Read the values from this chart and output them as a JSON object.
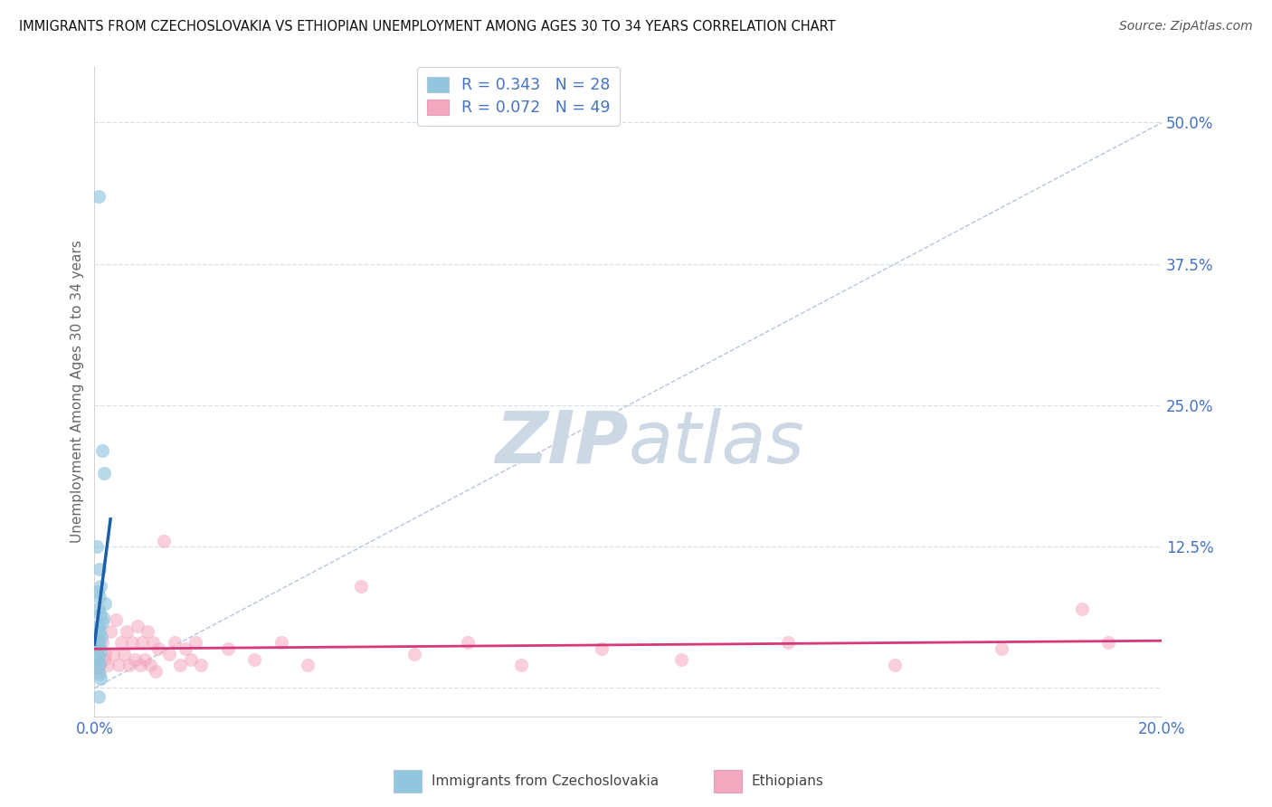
{
  "title": "IMMIGRANTS FROM CZECHOSLOVAKIA VS ETHIOPIAN UNEMPLOYMENT AMONG AGES 30 TO 34 YEARS CORRELATION CHART",
  "source": "Source: ZipAtlas.com",
  "ylabel": "Unemployment Among Ages 30 to 34 years",
  "xlim": [
    0.0,
    0.2
  ],
  "ylim": [
    -0.025,
    0.55
  ],
  "ytick_vals": [
    0.0,
    0.125,
    0.25,
    0.375,
    0.5
  ],
  "ytick_labels": [
    "",
    "12.5%",
    "25.0%",
    "37.5%",
    "50.0%"
  ],
  "xtick_vals": [
    0.0,
    0.05,
    0.1,
    0.15,
    0.2
  ],
  "xtick_labels": [
    "0.0%",
    "",
    "",
    "",
    "20.0%"
  ],
  "blue_R": 0.343,
  "blue_N": 28,
  "pink_R": 0.072,
  "pink_N": 49,
  "blue_x": [
    0.0008,
    0.0015,
    0.0018,
    0.0005,
    0.001,
    0.0012,
    0.0006,
    0.0009,
    0.002,
    0.0007,
    0.0011,
    0.0016,
    0.0014,
    0.0008,
    0.001,
    0.0005,
    0.0013,
    0.0007,
    0.0009,
    0.0006,
    0.0011,
    0.0008,
    0.0004,
    0.001,
    0.0006,
    0.0009,
    0.0012,
    0.0007
  ],
  "blue_y": [
    0.435,
    0.21,
    0.19,
    0.125,
    0.105,
    0.09,
    0.085,
    0.08,
    0.075,
    0.07,
    0.065,
    0.062,
    0.058,
    0.055,
    0.05,
    0.048,
    0.045,
    0.042,
    0.038,
    0.035,
    0.032,
    0.028,
    0.025,
    0.022,
    0.018,
    0.012,
    0.008,
    -0.008
  ],
  "pink_x": [
    0.0005,
    0.001,
    0.0008,
    0.0015,
    0.002,
    0.0018,
    0.003,
    0.0025,
    0.004,
    0.0035,
    0.005,
    0.0045,
    0.006,
    0.0055,
    0.007,
    0.0065,
    0.008,
    0.0075,
    0.009,
    0.0085,
    0.01,
    0.0095,
    0.011,
    0.0105,
    0.012,
    0.0115,
    0.013,
    0.014,
    0.015,
    0.016,
    0.017,
    0.018,
    0.019,
    0.02,
    0.025,
    0.03,
    0.035,
    0.04,
    0.05,
    0.06,
    0.07,
    0.08,
    0.095,
    0.11,
    0.13,
    0.15,
    0.17,
    0.185,
    0.19
  ],
  "pink_y": [
    0.035,
    0.02,
    0.015,
    0.04,
    0.03,
    0.025,
    0.05,
    0.02,
    0.06,
    0.03,
    0.04,
    0.02,
    0.05,
    0.03,
    0.04,
    0.02,
    0.055,
    0.025,
    0.04,
    0.02,
    0.05,
    0.025,
    0.04,
    0.02,
    0.035,
    0.015,
    0.13,
    0.03,
    0.04,
    0.02,
    0.035,
    0.025,
    0.04,
    0.02,
    0.035,
    0.025,
    0.04,
    0.02,
    0.09,
    0.03,
    0.04,
    0.02,
    0.035,
    0.025,
    0.04,
    0.02,
    0.035,
    0.07,
    0.04
  ],
  "blue_color": "#92c5de",
  "blue_edge_color": "#5a9fc9",
  "pink_color": "#f4a8bf",
  "pink_edge_color": "#e07090",
  "blue_line_color": "#1a5fa8",
  "pink_line_color": "#d63878",
  "diag_color": "#aabbd4",
  "grid_color": "#d0dde8",
  "tick_color": "#4472c4",
  "ylabel_color": "#666666",
  "title_color": "#111111",
  "source_color": "#555555",
  "watermark_color": "#cdd8e5",
  "legend_text_color": "#4472c4",
  "bg_color": "#ffffff"
}
